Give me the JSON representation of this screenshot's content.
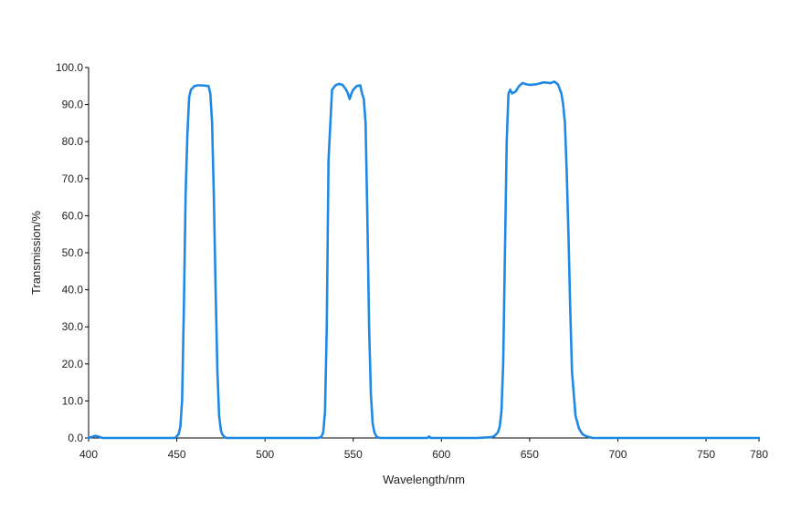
{
  "chart_data": {
    "type": "line",
    "title": "",
    "xlabel": "Wavelength/nm",
    "ylabel": "Transmission/%",
    "xlim": [
      400,
      780
    ],
    "ylim": [
      0,
      100
    ],
    "x_ticks": [
      400,
      450,
      500,
      550,
      600,
      650,
      700,
      750,
      780
    ],
    "y_ticks": [
      "0.0",
      "10.0",
      "20.0",
      "30.0",
      "40.0",
      "50.0",
      "60.0",
      "70.0",
      "80.0",
      "90.0",
      "100.0"
    ],
    "grid": false,
    "legend": "none",
    "series_color": "#1f88e5",
    "axis_color": "#000000",
    "series": [
      {
        "x": [
          400,
          402,
          404,
          406,
          408,
          420,
          440,
          449,
          451,
          452,
          453,
          454,
          455,
          456,
          457,
          458,
          460,
          462,
          464,
          466,
          468,
          469,
          470,
          471,
          472,
          473,
          474,
          475,
          476,
          477,
          478,
          480,
          500,
          520,
          530,
          532,
          533,
          534,
          535,
          536,
          538,
          540,
          542,
          544,
          546,
          547,
          548,
          549,
          550,
          552,
          554,
          555,
          556,
          557,
          558,
          559,
          560,
          561,
          562,
          563,
          564,
          566,
          570,
          580,
          592,
          593,
          594,
          600,
          620,
          628,
          630,
          632,
          633,
          634,
          635,
          636,
          637,
          638,
          639,
          640,
          642,
          644,
          646,
          648,
          650,
          654,
          658,
          662,
          664,
          666,
          668,
          669,
          670,
          671,
          672,
          673,
          674,
          676,
          678,
          680,
          682,
          684,
          686,
          690,
          700,
          750,
          780
        ],
        "values": [
          0.0,
          0.3,
          0.6,
          0.3,
          0.0,
          0.0,
          0.0,
          0.0,
          1.0,
          3.0,
          10.0,
          35.0,
          66.0,
          82.0,
          92.0,
          94.0,
          95.0,
          95.2,
          95.2,
          95.1,
          95.0,
          93.0,
          85.0,
          65.0,
          40.0,
          18.0,
          6.0,
          2.0,
          0.8,
          0.3,
          0.0,
          0.0,
          0.0,
          0.0,
          0.0,
          0.3,
          1.5,
          7.0,
          30.0,
          75.0,
          94.0,
          95.2,
          95.6,
          95.3,
          94.0,
          93.0,
          91.5,
          93.0,
          94.0,
          95.0,
          95.2,
          93.0,
          91.5,
          85.0,
          60.0,
          30.0,
          12.0,
          4.0,
          1.5,
          0.5,
          0.1,
          0.0,
          0.0,
          0.0,
          0.0,
          0.4,
          0.0,
          0.0,
          0.0,
          0.2,
          0.5,
          1.5,
          3.0,
          7.0,
          20.0,
          50.0,
          80.0,
          93.0,
          94.0,
          93.0,
          93.5,
          95.0,
          95.8,
          95.5,
          95.3,
          95.5,
          96.0,
          95.8,
          96.2,
          95.5,
          93.0,
          90.0,
          85.0,
          72.0,
          55.0,
          35.0,
          18.0,
          6.0,
          2.5,
          1.0,
          0.5,
          0.2,
          0.0,
          0.0,
          0.0,
          0.0,
          0.0
        ]
      }
    ]
  }
}
